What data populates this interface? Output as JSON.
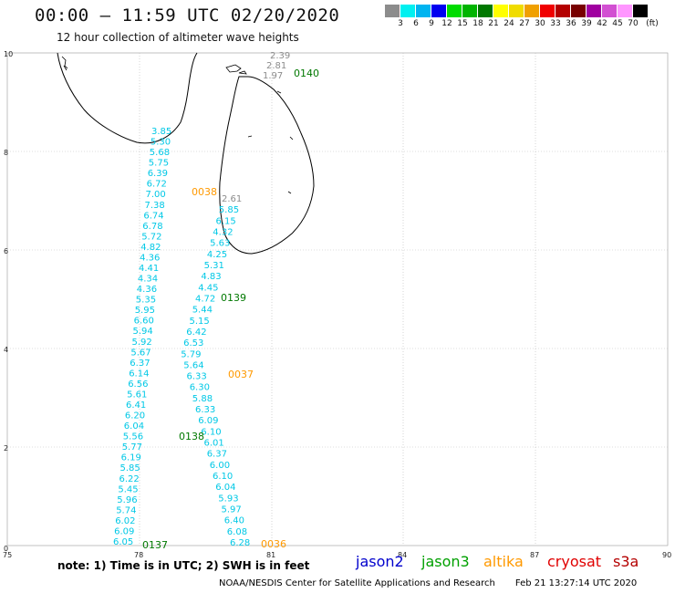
{
  "header": {
    "title": "00:00 – 11:59 UTC 02/20/2020",
    "subtitle": "12 hour collection of altimeter wave heights"
  },
  "legend": {
    "colors": [
      "#8c8c8c",
      "#00f0f0",
      "#00b4f0",
      "#0000f0",
      "#00dc00",
      "#00b400",
      "#007800",
      "#ffff00",
      "#f0dc00",
      "#f0a000",
      "#f00000",
      "#b40000",
      "#780000",
      "#a000a0",
      "#d250d2",
      "#ff96ff",
      "#000000"
    ],
    "labels": [
      "3",
      "6",
      "9",
      "12",
      "15",
      "18",
      "21",
      "24",
      "27",
      "30",
      "33",
      "36",
      "39",
      "42",
      "45",
      "70",
      "(ft)"
    ]
  },
  "axes": {
    "x_ticks": [
      "75",
      "78",
      "81",
      "84",
      "87",
      "90"
    ],
    "y_ticks": [
      "0",
      "2",
      "4",
      "6",
      "8",
      "10"
    ]
  },
  "colors": {
    "jason2": "#0000cd",
    "jason3": "#00a000",
    "altika": "#ff9900",
    "cryosat": "#e00000",
    "s3a": "#b40000",
    "value_cyan": "#00c8e6",
    "value_gray": "#8c8c8c"
  },
  "passes": [
    {
      "id": "0140",
      "color": "#007800"
    },
    {
      "id": "0038",
      "color": "#ff9900"
    },
    {
      "id": "0139",
      "color": "#007800"
    },
    {
      "id": "0037",
      "color": "#ff9900"
    },
    {
      "id": "0138",
      "color": "#007800"
    },
    {
      "id": "0137",
      "color": "#007800"
    },
    {
      "id": "0036",
      "color": "#ff9900"
    }
  ],
  "track_a_values": [
    "3.85",
    "5.30",
    "5.68",
    "5.75",
    "6.39",
    "6.72",
    "7.00",
    "7.38",
    "6.74",
    "6.78",
    "5.72",
    "4.82",
    "4.36",
    "4.41",
    "4.34",
    "4.36",
    "5.35",
    "5.95",
    "6.60",
    "5.94",
    "5.92",
    "5.67",
    "6.37",
    "6.14",
    "6.56",
    "5.61",
    "6.41",
    "6.20",
    "6.04",
    "5.56",
    "5.77",
    "6.19",
    "5.85",
    "6.22",
    "5.45",
    "5.96",
    "5.74",
    "6.02",
    "6.09",
    "6.05"
  ],
  "track_b_values": [
    "2.61",
    "5.85",
    "6.15",
    "4.32",
    "5.63",
    "4.25",
    "5.31",
    "4.83",
    "4.45",
    "4.72",
    "5.44",
    "5.15",
    "6.42",
    "6.53",
    "5.79",
    "5.64",
    "6.33",
    "6.30",
    "5.88",
    "6.33",
    "6.09",
    "6.10",
    "6.01",
    "6.37",
    "6.00",
    "6.10",
    "6.04",
    "5.93",
    "5.97",
    "6.40",
    "6.08",
    "6.28"
  ],
  "north_values": [
    "2.39",
    "2.81",
    "1.97"
  ],
  "footer": {
    "note": "note:  1) Time is in UTC;  2) SWH is in feet",
    "satellites": [
      "jason2",
      "jason3",
      "altika",
      "cryosat",
      "s3a"
    ],
    "credit": "NOAA/NESDIS Center for Satellite Applications and Research",
    "timestamp": "Feb 21 13:27:14 UTC 2020"
  }
}
